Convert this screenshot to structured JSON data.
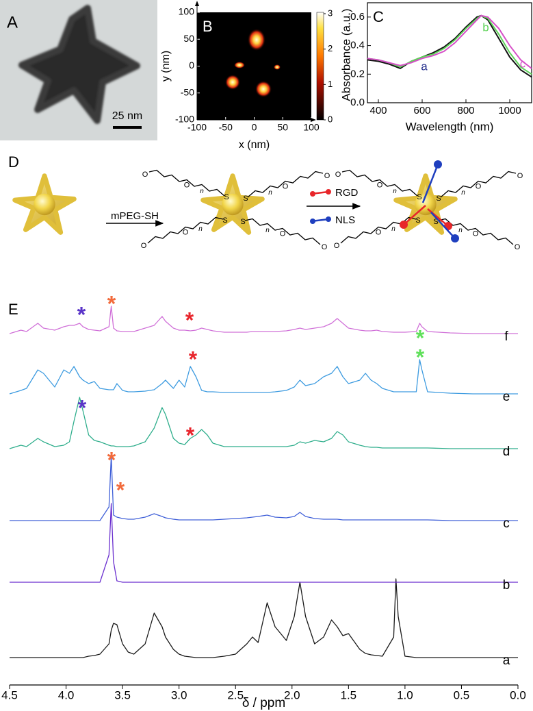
{
  "panel_a": {
    "label": "A",
    "scale_bar": "25 nm"
  },
  "panel_d": {
    "label": "D",
    "step1_reagent": "mPEG-SH",
    "ligands": [
      {
        "name": "RGD",
        "color": "#e8262a"
      },
      {
        "name": "NLS",
        "color": "#1f3fbf"
      }
    ],
    "chain_text": {
      "oxygen": "O",
      "repeat": "n",
      "sulfur": "S"
    }
  },
  "chart_data": [
    {
      "type": "heatmap",
      "panel_label": "B",
      "xlabel": "x (nm)",
      "ylabel": "y (nm)",
      "xlim": [
        -100,
        100
      ],
      "ylim": [
        -100,
        100
      ],
      "xticks": [
        -100,
        -50,
        0,
        50,
        100
      ],
      "yticks": [
        -100,
        -50,
        0,
        50,
        100
      ],
      "colorbar_lim": [
        0,
        3
      ],
      "colorbar_ticks": [
        0,
        1,
        2,
        3
      ]
    },
    {
      "type": "line",
      "panel_label": "C",
      "xlabel": "Wavelength (nm)",
      "ylabel": "Absorbance (a.u.)",
      "x": [
        350,
        400,
        450,
        500,
        550,
        600,
        650,
        700,
        750,
        800,
        850,
        870,
        900,
        950,
        1000,
        1050,
        1100
      ],
      "series": [
        {
          "name": "a",
          "color": "#111111",
          "label_color": "#1f2a8a",
          "values": [
            0.3,
            0.29,
            0.27,
            0.24,
            0.29,
            0.32,
            0.35,
            0.39,
            0.45,
            0.53,
            0.6,
            0.61,
            0.58,
            0.45,
            0.32,
            0.23,
            0.18
          ]
        },
        {
          "name": "b",
          "color": "#5fd35a",
          "label_color": "#5fd35a",
          "values": [
            0.31,
            0.3,
            0.28,
            0.25,
            0.29,
            0.32,
            0.34,
            0.38,
            0.44,
            0.52,
            0.59,
            0.61,
            0.59,
            0.48,
            0.35,
            0.25,
            0.2
          ]
        },
        {
          "name": "c",
          "color": "#d64fc8",
          "label_color": "#d64fc8",
          "values": [
            0.31,
            0.3,
            0.28,
            0.26,
            0.28,
            0.31,
            0.33,
            0.36,
            0.42,
            0.5,
            0.58,
            0.61,
            0.6,
            0.52,
            0.4,
            0.3,
            0.24
          ]
        }
      ],
      "xlim": [
        350,
        1100
      ],
      "ylim": [
        0,
        0.7
      ],
      "xticks": [
        400,
        600,
        800,
        1000
      ],
      "yticks": [
        {
          "value": 0,
          "label": "0.0"
        },
        {
          "value": 0.2,
          "label": "0.2"
        },
        {
          "value": 0.4,
          "label": "0.4"
        },
        {
          "value": 0.6,
          "label": "0.6"
        }
      ]
    },
    {
      "type": "spectra",
      "panel_label": "E",
      "xlabel": "δ / ppm",
      "x": [
        4.5,
        4.4,
        4.35,
        4.25,
        4.2,
        4.1,
        4.02,
        3.97,
        3.93,
        3.88,
        3.85,
        3.8,
        3.75,
        3.7,
        3.62,
        3.6,
        3.58,
        3.55,
        3.5,
        3.45,
        3.4,
        3.3,
        3.22,
        3.15,
        3.12,
        3.05,
        3.0,
        2.95,
        2.9,
        2.85,
        2.8,
        2.75,
        2.7,
        2.6,
        2.5,
        2.4,
        2.35,
        2.3,
        2.22,
        2.15,
        2.05,
        1.98,
        1.93,
        1.88,
        1.8,
        1.72,
        1.65,
        1.6,
        1.55,
        1.5,
        1.4,
        1.35,
        1.3,
        1.25,
        1.2,
        1.1,
        1.08,
        1.06,
        1.0,
        0.9,
        0.87,
        0.85,
        0.8,
        0.6,
        0.4,
        0.2,
        0
      ],
      "series": [
        {
          "name": "a",
          "color": "#1a1a1a",
          "values": [
            0,
            0,
            0,
            0,
            0,
            0,
            0,
            0,
            0,
            0,
            0,
            2,
            3,
            5,
            20,
            40,
            50,
            48,
            20,
            8,
            5,
            20,
            65,
            45,
            30,
            12,
            5,
            2,
            1,
            0,
            0,
            0,
            0,
            2,
            5,
            20,
            30,
            22,
            80,
            45,
            25,
            60,
            110,
            60,
            20,
            30,
            55,
            45,
            32,
            35,
            12,
            6,
            4,
            3,
            2,
            30,
            115,
            60,
            2,
            0,
            0,
            0,
            0,
            0,
            0,
            0,
            0
          ]
        },
        {
          "name": "b",
          "color": "#6a2fcf",
          "values": [
            0,
            0,
            0,
            0,
            0,
            0,
            0,
            0,
            0,
            0,
            0,
            0,
            0,
            0,
            40,
            115,
            30,
            2,
            0,
            0,
            0,
            0,
            0,
            0,
            0,
            0,
            0,
            0,
            0,
            0,
            0,
            0,
            0,
            0,
            0,
            0,
            0,
            0,
            0,
            0,
            0,
            0,
            0,
            0,
            0,
            0,
            0,
            0,
            0,
            0,
            0,
            0,
            0,
            0,
            0,
            0,
            0,
            0,
            0,
            0,
            0,
            0,
            0,
            0,
            0,
            0,
            0
          ]
        },
        {
          "name": "c",
          "color": "#4060d8",
          "values": [
            0,
            0,
            0,
            0,
            0,
            0,
            0,
            0,
            0,
            0,
            0,
            0,
            0,
            0,
            20,
            95,
            8,
            5,
            3,
            2,
            2,
            5,
            10,
            6,
            4,
            2,
            1,
            1,
            1,
            1,
            1,
            1,
            1,
            2,
            3,
            4,
            5,
            6,
            8,
            5,
            4,
            6,
            12,
            6,
            3,
            2,
            2,
            2,
            1,
            1,
            1,
            1,
            1,
            1,
            1,
            1,
            1,
            1,
            1,
            1,
            1,
            1,
            1,
            0,
            0,
            0,
            0
          ]
        },
        {
          "name": "d",
          "color": "#2fae8c",
          "values": [
            0,
            5,
            3,
            15,
            10,
            3,
            5,
            10,
            40,
            75,
            55,
            20,
            12,
            10,
            5,
            4,
            4,
            3,
            3,
            3,
            4,
            10,
            30,
            60,
            50,
            15,
            8,
            6,
            15,
            20,
            28,
            20,
            8,
            3,
            3,
            3,
            3,
            3,
            3,
            3,
            3,
            5,
            10,
            8,
            12,
            10,
            15,
            25,
            20,
            10,
            5,
            3,
            2,
            2,
            1,
            1,
            1,
            1,
            1,
            1,
            1,
            1,
            1,
            0,
            0,
            0,
            0
          ]
        },
        {
          "name": "e",
          "color": "#3d9be0",
          "values": [
            0,
            5,
            8,
            35,
            30,
            10,
            35,
            30,
            40,
            25,
            20,
            15,
            18,
            8,
            6,
            6,
            6,
            15,
            5,
            3,
            3,
            4,
            6,
            15,
            20,
            8,
            20,
            10,
            40,
            25,
            5,
            3,
            3,
            2,
            2,
            2,
            2,
            2,
            2,
            3,
            5,
            10,
            20,
            12,
            15,
            25,
            30,
            40,
            25,
            15,
            20,
            30,
            20,
            15,
            8,
            3,
            3,
            3,
            3,
            3,
            50,
            35,
            3,
            1,
            0,
            0,
            0
          ]
        },
        {
          "name": "f",
          "color": "#d070d8",
          "values": [
            0,
            5,
            3,
            15,
            8,
            5,
            10,
            12,
            12,
            15,
            10,
            6,
            5,
            4,
            10,
            40,
            8,
            4,
            3,
            3,
            3,
            8,
            12,
            25,
            18,
            8,
            5,
            5,
            4,
            5,
            8,
            6,
            4,
            2,
            2,
            2,
            3,
            3,
            3,
            3,
            4,
            6,
            8,
            6,
            8,
            10,
            15,
            22,
            15,
            8,
            5,
            4,
            4,
            5,
            3,
            2,
            2,
            2,
            2,
            3,
            15,
            10,
            3,
            1,
            0,
            0,
            0
          ]
        }
      ],
      "xlim": [
        4.5,
        0
      ],
      "xticks": [
        4.5,
        {
          "value": 4,
          "label": "4.0"
        },
        3.5,
        {
          "value": 3,
          "label": "3.0"
        },
        2.5,
        {
          "value": 2,
          "label": "2.0"
        },
        1.5,
        {
          "value": 1,
          "label": "1.0"
        },
        0.5,
        {
          "value": 0,
          "label": "0.0"
        }
      ],
      "asterisks": [
        {
          "text": "*",
          "color": "#5a34c8"
        },
        {
          "text": "*",
          "color": "#f26a3b"
        },
        {
          "text": "*",
          "color": "#e8252c"
        },
        {
          "text": "*",
          "color": "#5fe05a"
        },
        {
          "text": "*",
          "color": "#e8252c"
        },
        {
          "text": "*",
          "color": "#5fe05a"
        },
        {
          "text": "*",
          "color": "#5a34c8"
        },
        {
          "text": "*",
          "color": "#e8252c"
        },
        {
          "text": "*",
          "color": "#f26a3b"
        },
        {
          "text": "*",
          "color": "#f26a3b"
        }
      ]
    }
  ]
}
